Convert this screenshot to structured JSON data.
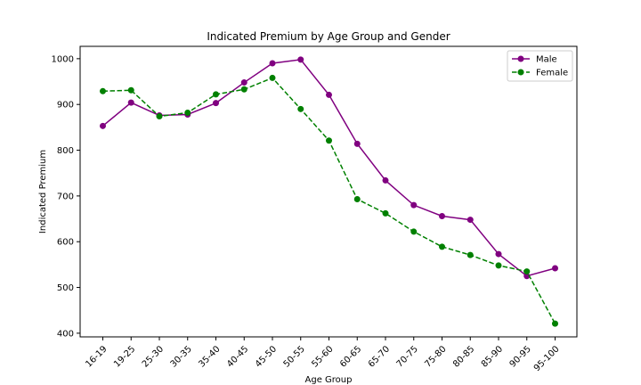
{
  "chart_data": {
    "type": "line",
    "title": "Indicated Premium by Age Group and Gender",
    "xlabel": "Age Group",
    "ylabel": "Indicated Premium",
    "categories": [
      "16-19",
      "19-25",
      "25-30",
      "30-35",
      "35-40",
      "40-45",
      "45-50",
      "50-55",
      "55-60",
      "60-65",
      "65-70",
      "70-75",
      "75-80",
      "80-85",
      "85-90",
      "90-95",
      "95-100"
    ],
    "ylim": [
      392,
      1027
    ],
    "yticks": [
      400,
      500,
      600,
      700,
      800,
      900,
      1000
    ],
    "grid": false,
    "legend_position": "top-right",
    "series": [
      {
        "name": "Male",
        "color": "#800080",
        "linestyle": "solid",
        "marker": "circle",
        "values": [
          853,
          904,
          876,
          878,
          903,
          948,
          990,
          998,
          921,
          814,
          734,
          680,
          656,
          648,
          573,
          525,
          542
        ]
      },
      {
        "name": "Female",
        "color": "#008000",
        "linestyle": "dashed",
        "marker": "circle",
        "values": [
          929,
          931,
          874,
          882,
          922,
          933,
          958,
          890,
          821,
          693,
          662,
          622,
          589,
          571,
          548,
          535,
          421
        ]
      }
    ]
  }
}
